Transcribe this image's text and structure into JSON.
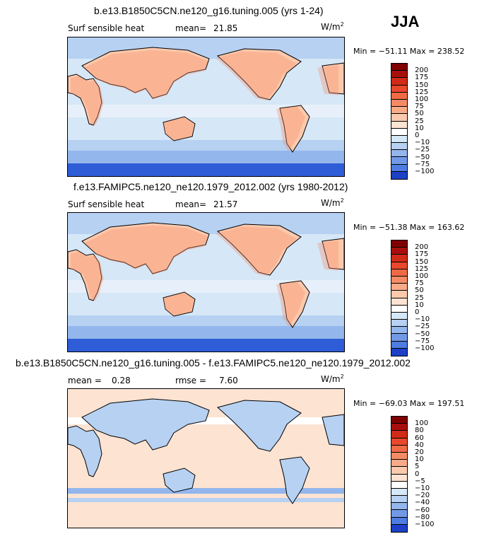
{
  "season": "JJA",
  "colors": {
    "pos": [
      "#fde3d2",
      "#fcc9ad",
      "#f9ab88",
      "#f58b66",
      "#f06a45",
      "#e8482b",
      "#d12a19",
      "#a80f0c",
      "#7f0000"
    ],
    "neg": [
      "#d6e7f7",
      "#b6d1f2",
      "#93b6ec",
      "#7199e6",
      "#4f7ce0",
      "#2e5dd7",
      "#1c40c7",
      "#0b22a6",
      "#000f80"
    ]
  },
  "panels": [
    {
      "title": "b.e13.B1850C5CN.ne120_g16.tuning.005 (yrs 1-24)",
      "var_label": "Surf sensible heat",
      "mean_label": "mean=",
      "mean_value": "21.85",
      "units": "W/m",
      "units_exp": "2",
      "minmax": "Min = −51.11 Max = 238.52",
      "levels": [
        "200",
        "175",
        "150",
        "125",
        "100",
        "75",
        "50",
        "25",
        "10",
        "0",
        "−10",
        "−25",
        "−50",
        "−75",
        "−100"
      ]
    },
    {
      "title": "f.e13.FAMIPC5.ne120_ne120.1979_2012.002 (yrs 1980-2012)",
      "var_label": "Surf sensible heat",
      "mean_label": "mean=",
      "mean_value": "21.57",
      "units": "W/m",
      "units_exp": "2",
      "minmax": "Min = −51.38 Max = 163.62",
      "levels": [
        "200",
        "175",
        "150",
        "125",
        "100",
        "75",
        "50",
        "25",
        "10",
        "0",
        "−10",
        "−25",
        "−50",
        "−75",
        "−100"
      ]
    },
    {
      "title": "b.e13.B1850C5CN.ne120_g16.tuning.005 - f.e13.FAMIPC5.ne120_ne120.1979_2012.002",
      "mean_label": "mean =",
      "mean_value": "0.28",
      "rmse_label": "rmse =",
      "rmse_value": "7.60",
      "units": "W/m",
      "units_exp": "2",
      "minmax": "Min = −69.03 Max = 197.51",
      "levels": [
        "100",
        "80",
        "60",
        "40",
        "20",
        "10",
        "5",
        "0",
        "−5",
        "−10",
        "−20",
        "−40",
        "−60",
        "−80",
        "−100"
      ]
    }
  ]
}
